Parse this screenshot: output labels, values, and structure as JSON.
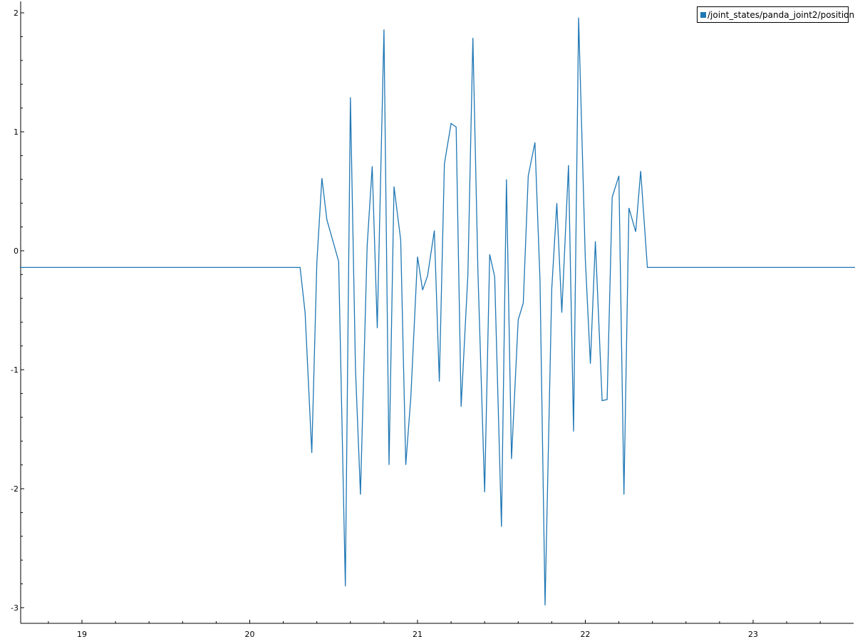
{
  "chart_data": {
    "type": "line",
    "title": "",
    "xlabel": "",
    "ylabel": "",
    "xlim": [
      18.63,
      23.61
    ],
    "ylim": [
      -3.05,
      2.1
    ],
    "xticks": [
      19,
      20,
      21,
      22,
      23
    ],
    "xtick_labels": [
      "19",
      "20",
      "21",
      "22",
      "23"
    ],
    "yticks": [
      -3,
      -2,
      -1,
      0,
      1,
      2
    ],
    "ytick_labels": [
      "-3",
      "-2",
      "-1",
      "0",
      "1",
      "2"
    ],
    "grid": false,
    "legend": "top-right",
    "series": [
      {
        "name": "/joint_states/panda_joint2/position",
        "color": "#1f77b4",
        "x": [
          18.63,
          20.3,
          20.33,
          20.37,
          20.4,
          20.43,
          20.46,
          20.5,
          20.53,
          20.57,
          20.6,
          20.63,
          20.66,
          20.7,
          20.73,
          20.76,
          20.8,
          20.83,
          20.86,
          20.9,
          20.93,
          20.96,
          21.0,
          21.03,
          21.06,
          21.1,
          21.13,
          21.16,
          21.2,
          21.23,
          21.26,
          21.3,
          21.33,
          21.36,
          21.4,
          21.43,
          21.46,
          21.5,
          21.53,
          21.56,
          21.6,
          21.63,
          21.66,
          21.7,
          21.73,
          21.76,
          21.8,
          21.83,
          21.86,
          21.9,
          21.93,
          21.96,
          22.0,
          22.03,
          22.06,
          22.1,
          22.13,
          22.16,
          22.2,
          22.23,
          22.26,
          22.3,
          22.33,
          22.37,
          23.61
        ],
        "y": [
          -0.14,
          -0.14,
          -0.52,
          -1.7,
          -0.1,
          0.61,
          0.26,
          0.06,
          -0.09,
          -2.82,
          1.29,
          -0.99,
          -2.05,
          0.04,
          0.71,
          -0.65,
          1.86,
          -1.8,
          0.54,
          0.09,
          -1.8,
          -1.23,
          -0.05,
          -0.33,
          -0.21,
          0.17,
          -1.1,
          0.73,
          1.07,
          1.04,
          -1.31,
          -0.2,
          1.79,
          -0.18,
          -2.03,
          -0.03,
          -0.22,
          -2.32,
          0.6,
          -1.75,
          -0.58,
          -0.44,
          0.63,
          0.91,
          -0.25,
          -2.98,
          -0.32,
          0.4,
          -0.52,
          0.72,
          -1.52,
          1.96,
          -0.07,
          -0.95,
          0.08,
          -1.26,
          -1.25,
          0.45,
          0.63,
          -2.05,
          0.36,
          0.16,
          0.67,
          -0.14,
          -0.14
        ]
      }
    ]
  }
}
